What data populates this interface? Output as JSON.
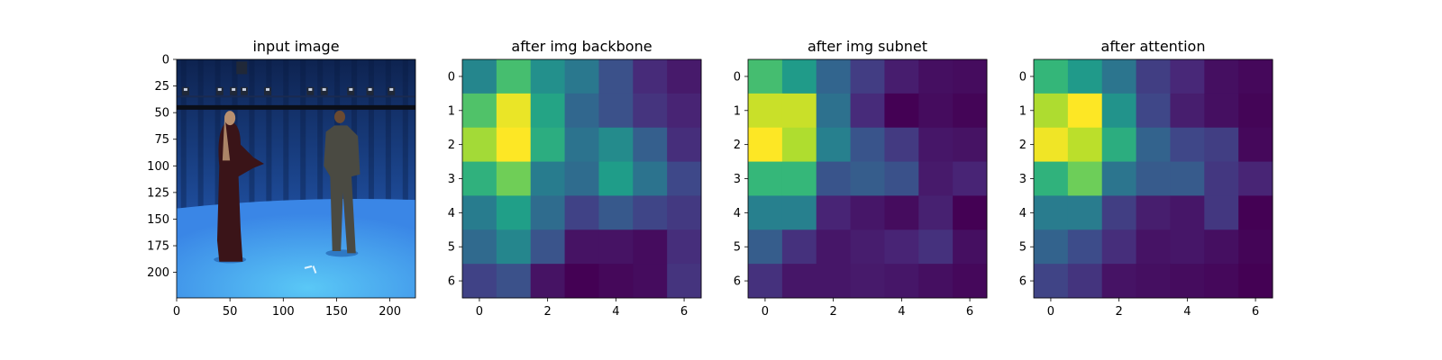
{
  "figure": {
    "background": "#ffffff",
    "colormap": "viridis"
  },
  "chart_data": [
    {
      "type": "image",
      "title": "input image",
      "image_description": "photo",
      "xlim": [
        0,
        224
      ],
      "ylim": [
        224,
        0
      ],
      "x_ticks": [
        0,
        50,
        100,
        150,
        200
      ],
      "x_tick_labels": [
        "0",
        "50",
        "100",
        "150",
        "200"
      ],
      "y_ticks": [
        0,
        25,
        50,
        75,
        100,
        125,
        150,
        175,
        200
      ],
      "y_tick_labels": [
        "0",
        "25",
        "50",
        "75",
        "100",
        "125",
        "150",
        "175",
        "200"
      ],
      "colors": {
        "backdrop_top": "#0e2350",
        "backdrop_mid": "#1e4c9a",
        "floor_far": "#3a86e6",
        "floor_near": "#5ac8f6",
        "truss": "#0a0e18",
        "person_left_robe": "#3a1418",
        "person_left_hair": "#b89070",
        "person_right_clothes": "#4a4a42",
        "person_right_hair": "#6a4a32"
      }
    },
    {
      "type": "heatmap",
      "title": "after img backbone",
      "x_ticks": [
        0,
        2,
        4,
        6
      ],
      "y_ticks": [
        0,
        1,
        2,
        3,
        4,
        5,
        6
      ],
      "x_tick_labels": [
        "0",
        "2",
        "4",
        "6"
      ],
      "y_tick_labels": [
        "0",
        "1",
        "2",
        "3",
        "4",
        "5",
        "6"
      ],
      "values": [
        [
          0.46,
          0.7,
          0.5,
          0.4,
          0.25,
          0.12,
          0.07
        ],
        [
          0.72,
          0.97,
          0.58,
          0.33,
          0.25,
          0.15,
          0.1
        ],
        [
          0.86,
          1.0,
          0.62,
          0.38,
          0.48,
          0.3,
          0.13
        ],
        [
          0.64,
          0.78,
          0.42,
          0.35,
          0.55,
          0.38,
          0.22
        ],
        [
          0.42,
          0.56,
          0.35,
          0.2,
          0.28,
          0.21,
          0.17
        ],
        [
          0.34,
          0.46,
          0.26,
          0.05,
          0.05,
          0.03,
          0.13
        ],
        [
          0.2,
          0.25,
          0.05,
          0.0,
          0.02,
          0.03,
          0.15
        ]
      ]
    },
    {
      "type": "heatmap",
      "title": "after img subnet",
      "x_ticks": [
        0,
        2,
        4,
        6
      ],
      "y_ticks": [
        0,
        1,
        2,
        3,
        4,
        5,
        6
      ],
      "x_tick_labels": [
        "0",
        "2",
        "4",
        "6"
      ],
      "y_tick_labels": [
        "0",
        "1",
        "2",
        "3",
        "4",
        "5",
        "6"
      ],
      "values": [
        [
          0.7,
          0.55,
          0.33,
          0.19,
          0.09,
          0.05,
          0.04
        ],
        [
          0.92,
          0.92,
          0.38,
          0.13,
          0.01,
          0.04,
          0.02
        ],
        [
          1.0,
          0.88,
          0.44,
          0.27,
          0.18,
          0.07,
          0.06
        ],
        [
          0.67,
          0.67,
          0.27,
          0.3,
          0.26,
          0.08,
          0.11
        ],
        [
          0.44,
          0.44,
          0.11,
          0.07,
          0.04,
          0.1,
          0.01
        ],
        [
          0.3,
          0.15,
          0.07,
          0.09,
          0.11,
          0.15,
          0.05
        ],
        [
          0.15,
          0.07,
          0.07,
          0.08,
          0.07,
          0.05,
          0.03
        ]
      ]
    },
    {
      "type": "heatmap",
      "title": "after attention",
      "x_ticks": [
        0,
        2,
        4,
        6
      ],
      "y_ticks": [
        0,
        1,
        2,
        3,
        4,
        5,
        6
      ],
      "x_tick_labels": [
        "0",
        "2",
        "4",
        "6"
      ],
      "y_tick_labels": [
        "0",
        "1",
        "2",
        "3",
        "4",
        "5",
        "6"
      ],
      "values": [
        [
          0.67,
          0.55,
          0.4,
          0.2,
          0.13,
          0.06,
          0.04
        ],
        [
          0.88,
          1.0,
          0.52,
          0.23,
          0.1,
          0.06,
          0.03
        ],
        [
          0.98,
          0.9,
          0.63,
          0.33,
          0.23,
          0.2,
          0.04
        ],
        [
          0.65,
          0.78,
          0.4,
          0.3,
          0.3,
          0.18,
          0.12
        ],
        [
          0.43,
          0.43,
          0.2,
          0.1,
          0.08,
          0.18,
          0.02
        ],
        [
          0.33,
          0.25,
          0.15,
          0.07,
          0.08,
          0.06,
          0.03
        ],
        [
          0.22,
          0.17,
          0.07,
          0.06,
          0.05,
          0.04,
          0.02
        ]
      ]
    }
  ]
}
